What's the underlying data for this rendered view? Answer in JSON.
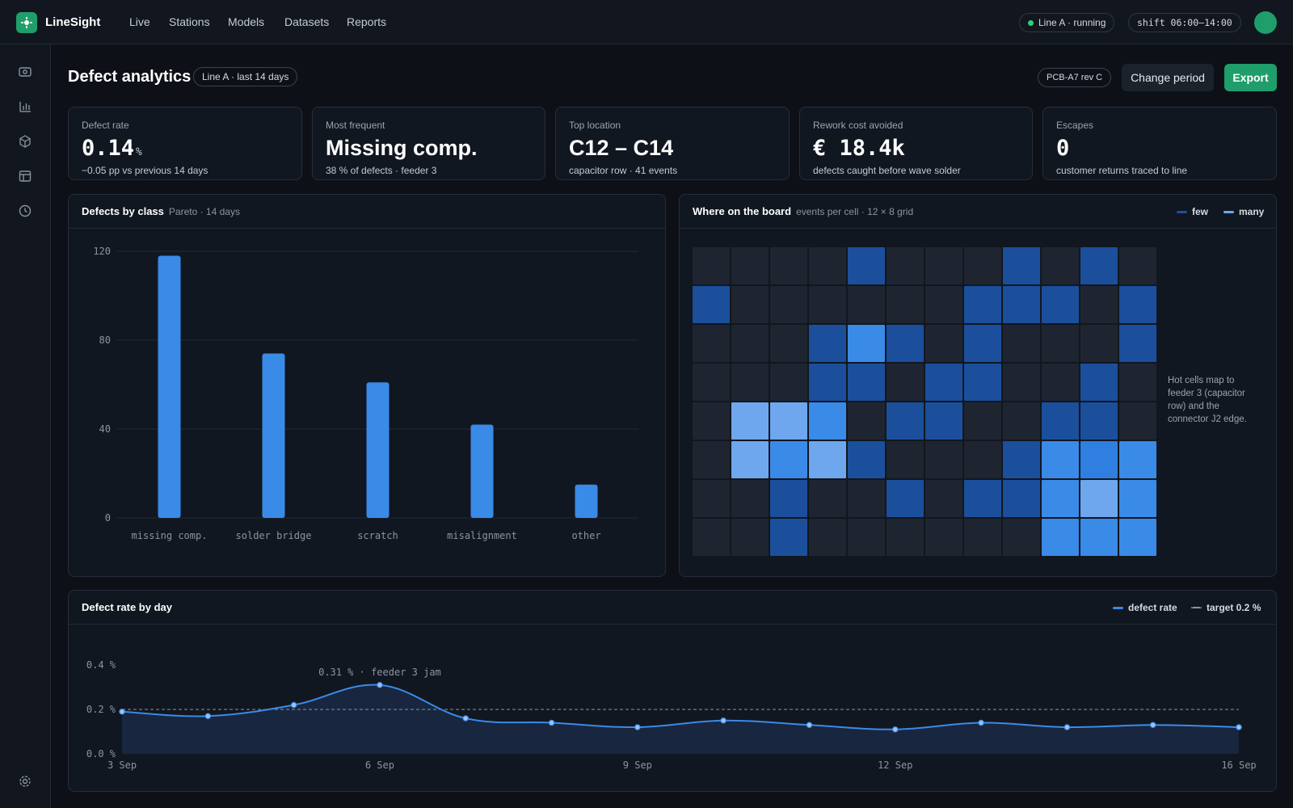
{
  "app": {
    "brand": "LineSight"
  },
  "nav": [
    "Live",
    "Stations",
    "Models",
    "Datasets",
    "Reports"
  ],
  "topbar": {
    "line_status": "Line A · running",
    "shift": "shift 06:00–14:00"
  },
  "sidebar_icons": [
    "camera-icon",
    "bar-chart-icon",
    "cube-icon",
    "layout-icon",
    "clock-icon",
    "gear-icon"
  ],
  "header": {
    "title": "Defect analytics",
    "scope": "Line A · last 14 days",
    "product": "PCB-A7 rev C",
    "change_period": "Change period",
    "export": "Export"
  },
  "kpis": [
    {
      "label": "Defect rate",
      "value": "0.14",
      "unit": "%",
      "sub": "−0.05 pp vs previous 14 days"
    },
    {
      "label": "Most frequent",
      "value": "Missing comp.",
      "sub": "38 % of defects · feeder 3"
    },
    {
      "label": "Top location",
      "value": "C12 – C14",
      "sub": "capacitor row · 41 events"
    },
    {
      "label": "Rework cost avoided",
      "value": "€ 18.4k",
      "sub": "defects caught before wave solder"
    },
    {
      "label": "Escapes",
      "value": "0",
      "sub": "customer returns traced to line"
    }
  ],
  "pareto": {
    "title": "Defects by class",
    "subtitle": "Pareto · 14 days"
  },
  "heatmap": {
    "title": "Where on the board",
    "subtitle": "events per cell · 12 × 8 grid",
    "legend_few": "few",
    "legend_many": "many",
    "note": "Hot cells map to feeder 3 (capacitor row) and the connector J2 edge.",
    "colors": [
      "#1e2530",
      "#1b4f9c",
      "#2f7fe0",
      "#3a8ae8",
      "#6ea7ee"
    ],
    "levels": [
      [
        0,
        0,
        0,
        0,
        1,
        0,
        0,
        0,
        1,
        0,
        1,
        0
      ],
      [
        1,
        0,
        0,
        0,
        0,
        0,
        0,
        1,
        1,
        1,
        0,
        1
      ],
      [
        0,
        0,
        0,
        1,
        3,
        1,
        0,
        1,
        0,
        0,
        0,
        1
      ],
      [
        0,
        0,
        0,
        1,
        1,
        0,
        1,
        1,
        0,
        0,
        1,
        0
      ],
      [
        0,
        4,
        4,
        3,
        0,
        1,
        1,
        0,
        0,
        1,
        1,
        0
      ],
      [
        0,
        4,
        3,
        4,
        1,
        0,
        0,
        0,
        1,
        3,
        2,
        3
      ],
      [
        0,
        0,
        1,
        0,
        0,
        1,
        0,
        1,
        1,
        3,
        4,
        3
      ],
      [
        0,
        0,
        1,
        0,
        0,
        0,
        0,
        0,
        0,
        3,
        3,
        3
      ]
    ]
  },
  "trend": {
    "title": "Defect rate by day",
    "legend_rate": "defect rate",
    "legend_target": "target 0.2 %",
    "annotation": "0.31 % · feeder 3 jam"
  },
  "chart_data": [
    {
      "type": "bar",
      "title": "Defects by class",
      "categories": [
        "missing comp.",
        "solder bridge",
        "scratch",
        "misalignment",
        "other"
      ],
      "values": [
        118,
        74,
        61,
        42,
        15
      ],
      "ylim": [
        0,
        120
      ],
      "yticks": [
        0,
        40,
        80,
        120
      ],
      "ytick_labels": [
        "0",
        "40",
        "80",
        "120"
      ],
      "color": "#3a8ae8",
      "grid": true
    },
    {
      "type": "line",
      "title": "Defect rate by day",
      "x": [
        "3 Sep",
        "4 Sep",
        "5 Sep",
        "6 Sep",
        "7 Sep",
        "8 Sep",
        "9 Sep",
        "10 Sep",
        "11 Sep",
        "12 Sep",
        "13 Sep",
        "14 Sep",
        "15 Sep",
        "16 Sep"
      ],
      "x_tick_labels": [
        "3 Sep",
        "6 Sep",
        "9 Sep",
        "12 Sep",
        "16 Sep"
      ],
      "series": [
        {
          "name": "defect rate",
          "values": [
            0.19,
            0.17,
            0.22,
            0.31,
            0.16,
            0.14,
            0.12,
            0.15,
            0.13,
            0.11,
            0.14,
            0.12,
            0.13,
            0.12
          ],
          "color": "#3a8ae8"
        },
        {
          "name": "target 0.2 %",
          "values": [
            0.2,
            0.2,
            0.2,
            0.2,
            0.2,
            0.2,
            0.2,
            0.2,
            0.2,
            0.2,
            0.2,
            0.2,
            0.2,
            0.2
          ],
          "style": "dashed",
          "color": "#8b94a1"
        }
      ],
      "ylim": [
        0,
        0.4
      ],
      "yticks": [
        0,
        0.2,
        0.4
      ],
      "ytick_labels": [
        "0.0 %",
        "0.2 %",
        "0.4 %"
      ],
      "annotation": {
        "x": "6 Sep",
        "y": 0.31,
        "text": "0.31 % · feeder 3 jam"
      }
    }
  ]
}
